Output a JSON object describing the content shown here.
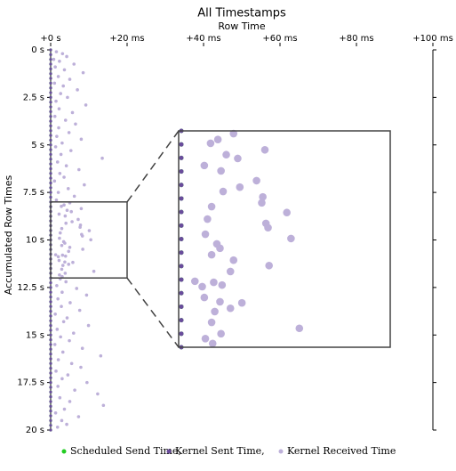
{
  "chart_data": {
    "type": "scatter",
    "title": "All Timestamps",
    "x_label": "Row Time",
    "y_label": "Accumulated Row Times",
    "xlim": [
      0,
      100
    ],
    "xticks": [
      {
        "value": 0,
        "label": "+0 s"
      },
      {
        "value": 20,
        "label": "+20 ms"
      },
      {
        "value": 40,
        "label": "+40 ms"
      },
      {
        "value": 60,
        "label": "+60 ms"
      },
      {
        "value": 80,
        "label": "+80 ms"
      },
      {
        "value": 100,
        "label": "+100 ms"
      }
    ],
    "ylim": [
      0,
      20
    ],
    "yticks": [
      {
        "value": 0,
        "label": "0 s"
      },
      {
        "value": 2.5,
        "label": "2.5 s"
      },
      {
        "value": 5,
        "label": "5 s"
      },
      {
        "value": 7.5,
        "label": "7.5 s"
      },
      {
        "value": 10,
        "label": "10 s"
      },
      {
        "value": 12.5,
        "label": "12.5 s"
      },
      {
        "value": 15,
        "label": "15 s"
      },
      {
        "value": 17.5,
        "label": "17.5 s"
      },
      {
        "value": 20,
        "label": "20 s"
      }
    ],
    "zoom": {
      "xlim": [
        0,
        20
      ],
      "ylim": [
        8,
        12
      ]
    },
    "series": [
      {
        "name": "Scheduled Send Time,",
        "color": "#22cc22",
        "x": 0,
        "values": [
          0,
          0.25,
          0.5,
          0.75,
          1,
          1.25,
          1.5,
          1.75,
          2,
          2.25,
          2.5,
          2.75,
          3,
          3.25,
          3.5,
          3.75,
          4,
          4.25,
          4.5,
          4.75,
          5,
          5.25,
          5.5,
          5.75,
          6,
          6.25,
          6.5,
          6.75,
          7,
          7.25,
          7.5,
          7.75,
          8,
          8.25,
          8.5,
          8.75,
          9,
          9.25,
          9.5,
          9.75,
          10,
          10.25,
          10.5,
          10.75,
          11,
          11.25,
          11.5,
          11.75,
          12,
          12.25,
          12.5,
          12.75,
          13,
          13.25,
          13.5,
          13.75,
          14,
          14.25,
          14.5,
          14.75,
          15,
          15.25,
          15.5,
          15.75,
          16,
          16.25,
          16.5,
          16.75,
          17,
          17.25,
          17.5,
          17.75,
          18,
          18.25,
          18.5,
          18.75,
          19,
          19.25,
          19.5,
          19.75,
          20
        ]
      },
      {
        "name": "Kernel Sent Time,",
        "color": "#6a4c9c",
        "x": 0,
        "values": [
          0,
          0.25,
          0.5,
          0.75,
          1,
          1.25,
          1.5,
          1.75,
          2,
          2.25,
          2.5,
          2.75,
          3,
          3.25,
          3.5,
          3.75,
          4,
          4.25,
          4.5,
          4.75,
          5,
          5.25,
          5.5,
          5.75,
          6,
          6.25,
          6.5,
          6.75,
          7,
          7.25,
          7.5,
          7.75,
          8,
          8.25,
          8.5,
          8.75,
          9,
          9.25,
          9.5,
          9.75,
          10,
          10.25,
          10.5,
          10.75,
          11,
          11.25,
          11.5,
          11.75,
          12,
          12.25,
          12.5,
          12.75,
          13,
          13.25,
          13.5,
          13.75,
          14,
          14.25,
          14.5,
          14.75,
          15,
          15.25,
          15.5,
          15.75,
          16,
          16.25,
          16.5,
          16.75,
          17,
          17.25,
          17.5,
          17.75,
          18,
          18.25,
          18.5,
          18.75,
          19,
          19.25,
          19.5,
          19.75,
          20
        ]
      },
      {
        "name": "Kernel Received Time",
        "color": "#bdb0d9",
        "x": [
          1.5,
          3.1,
          4.2,
          0.8,
          2.3,
          6.1,
          1.2,
          3.6,
          8.5,
          2.0,
          5.0,
          1.0,
          3.3,
          7.0,
          2.6,
          4.4,
          1.4,
          9.2,
          2.2,
          5.7,
          1.1,
          3.9,
          6.5,
          2.1,
          4.8,
          1.6,
          8.0,
          3.0,
          1.3,
          5.3,
          2.7,
          13.5,
          1.8,
          4.1,
          7.4,
          2.4,
          3.5,
          1.0,
          8.8,
          4.6,
          2.0,
          6.2,
          1.5,
          2.8,
          3.5,
          5.0,
          8.0,
          2.2,
          4.3,
          5.4,
          3.8,
          7.2,
          5.6,
          4.0,
          7.8,
          2.9,
          7.7,
          10.1,
          2.5,
          8.1,
          8.3,
          2.3,
          10.5,
          3.4,
          3.7,
          2.9,
          5.0,
          8.4,
          4.7,
          1.3,
          2.0,
          3.1,
          3.9,
          2.2,
          5.8,
          3.7,
          4.7,
          3.2,
          2.9,
          11.3,
          3.8,
          2.3,
          3.0,
          2.5,
          4.0,
          1.6,
          6.8,
          3.0,
          9.4,
          1.9,
          5.1,
          2.8,
          7.6,
          1.2,
          4.3,
          3.4,
          9.9,
          1.7,
          6.0,
          2.6,
          4.9,
          1.1,
          8.3,
          3.2,
          13.1,
          2.0,
          5.5,
          7.9,
          1.4,
          4.5,
          3.0,
          9.5,
          1.9,
          6.3,
          12.3,
          2.4,
          5.0,
          13.8,
          3.6,
          1.3,
          7.3,
          2.9,
          4.2,
          1.8
        ],
        "values": [
          0.1,
          0.2,
          0.35,
          0.5,
          0.6,
          0.75,
          0.9,
          1.05,
          1.2,
          1.4,
          1.55,
          1.75,
          1.9,
          2.1,
          2.3,
          2.5,
          2.7,
          2.9,
          3.1,
          3.3,
          3.5,
          3.7,
          3.9,
          4.1,
          4.35,
          4.55,
          4.7,
          4.9,
          5.1,
          5.3,
          5.5,
          5.7,
          5.9,
          6.1,
          6.3,
          6.5,
          6.7,
          6.9,
          7.1,
          7.3,
          7.5,
          7.7,
          7.9,
          8.23,
          8.16,
          8.05,
          8.35,
          8.64,
          8.44,
          8.51,
          8.74,
          8.92,
          9.04,
          9.12,
          9.22,
          9.4,
          9.33,
          9.51,
          9.63,
          9.71,
          9.79,
          9.91,
          9.99,
          10.09,
          10.17,
          10.29,
          10.39,
          10.49,
          10.6,
          10.78,
          10.88,
          10.8,
          10.85,
          11.08,
          11.18,
          11.16,
          11.28,
          11.34,
          11.54,
          11.65,
          11.75,
          11.84,
          11.93,
          12.05,
          12.2,
          12.4,
          12.55,
          12.75,
          12.9,
          13.1,
          13.3,
          13.5,
          13.7,
          13.9,
          14.1,
          14.3,
          14.5,
          14.7,
          14.9,
          15.1,
          15.3,
          15.5,
          15.7,
          15.9,
          16.1,
          16.3,
          16.5,
          16.7,
          16.9,
          17.1,
          17.3,
          17.5,
          17.7,
          17.9,
          18.1,
          18.3,
          18.5,
          18.7,
          18.9,
          19.1,
          19.3,
          19.5,
          19.7,
          19.85
        ]
      }
    ]
  }
}
